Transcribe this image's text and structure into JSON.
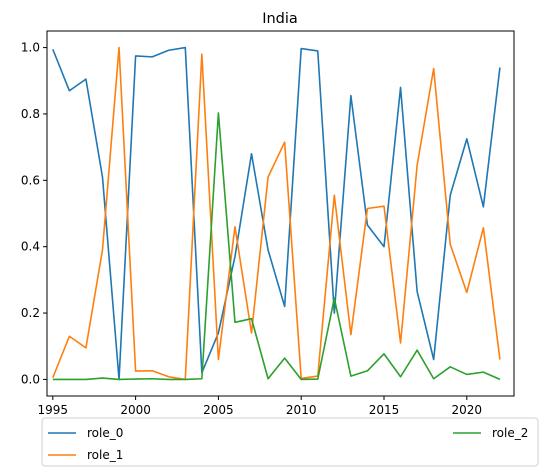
{
  "chart_data": {
    "type": "line",
    "title": "India",
    "xlabel": "",
    "ylabel": "",
    "xlim": [
      1994.65,
      2022.85
    ],
    "ylim": [
      -0.05,
      1.05
    ],
    "xticks": [
      1995,
      2000,
      2005,
      2010,
      2015,
      2020
    ],
    "yticks": [
      0.0,
      0.2,
      0.4,
      0.6,
      0.8,
      1.0
    ],
    "ytick_labels": [
      "0.0",
      "0.2",
      "0.4",
      "0.6",
      "0.8",
      "1.0"
    ],
    "grid": false,
    "legend_position": "below-plot",
    "x": [
      1995,
      1996,
      1997,
      1998,
      1999,
      2000,
      2001,
      2002,
      2003,
      2004,
      2005,
      2006,
      2007,
      2008,
      2009,
      2010,
      2011,
      2012,
      2013,
      2014,
      2015,
      2016,
      2017,
      2018,
      2019,
      2020,
      2021,
      2022
    ],
    "series": [
      {
        "name": "role_0",
        "color": "#1f77b4",
        "values": [
          0.995,
          0.87,
          0.905,
          0.61,
          0.0,
          0.975,
          0.972,
          0.992,
          1.0,
          0.02,
          0.14,
          0.37,
          0.68,
          0.39,
          0.22,
          0.997,
          0.99,
          0.2,
          0.855,
          0.465,
          0.4,
          0.88,
          0.265,
          0.06,
          0.555,
          0.725,
          0.52,
          0.94
        ]
      },
      {
        "name": "role_1",
        "color": "#ff7f0e",
        "values": [
          0.005,
          0.13,
          0.095,
          0.39,
          1.0,
          0.025,
          0.026,
          0.008,
          0.0,
          0.98,
          0.06,
          0.46,
          0.14,
          0.61,
          0.715,
          0.003,
          0.01,
          0.555,
          0.135,
          0.515,
          0.522,
          0.11,
          0.645,
          0.937,
          0.407,
          0.262,
          0.457,
          0.06
        ]
      },
      {
        "name": "role_2",
        "color": "#2ca02c",
        "values": [
          0.0,
          0.0,
          0.0,
          0.004,
          0.0,
          0.001,
          0.002,
          0.0,
          0.0,
          0.002,
          0.803,
          0.172,
          0.183,
          0.002,
          0.064,
          0.0,
          0.001,
          0.245,
          0.01,
          0.026,
          0.077,
          0.008,
          0.088,
          0.002,
          0.038,
          0.015,
          0.022,
          0.0
        ]
      }
    ]
  }
}
